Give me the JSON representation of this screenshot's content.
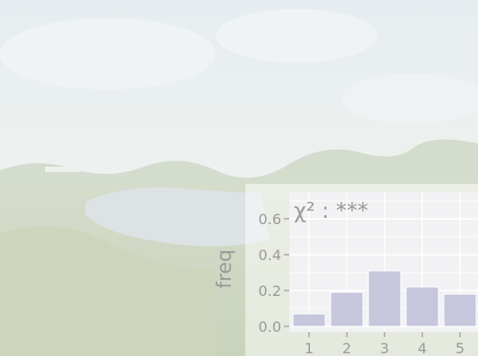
{
  "chart_data": {
    "type": "bar",
    "title": "χ² : ***",
    "xlabel": "",
    "ylabel": "freq",
    "categories": [
      "1",
      "2",
      "3",
      "4",
      "5"
    ],
    "values": [
      0.07,
      0.19,
      0.31,
      0.22,
      0.18
    ],
    "ylim": [
      0.0,
      0.7
    ],
    "yticks": [
      "0.0",
      "0.2",
      "0.4",
      "0.6"
    ],
    "grid": true,
    "colors": {
      "bar_fill": "#c6c6dc",
      "panel_bg": "#f2f2f4",
      "grid": "#ffffff",
      "text": "#9a9a9a"
    }
  }
}
